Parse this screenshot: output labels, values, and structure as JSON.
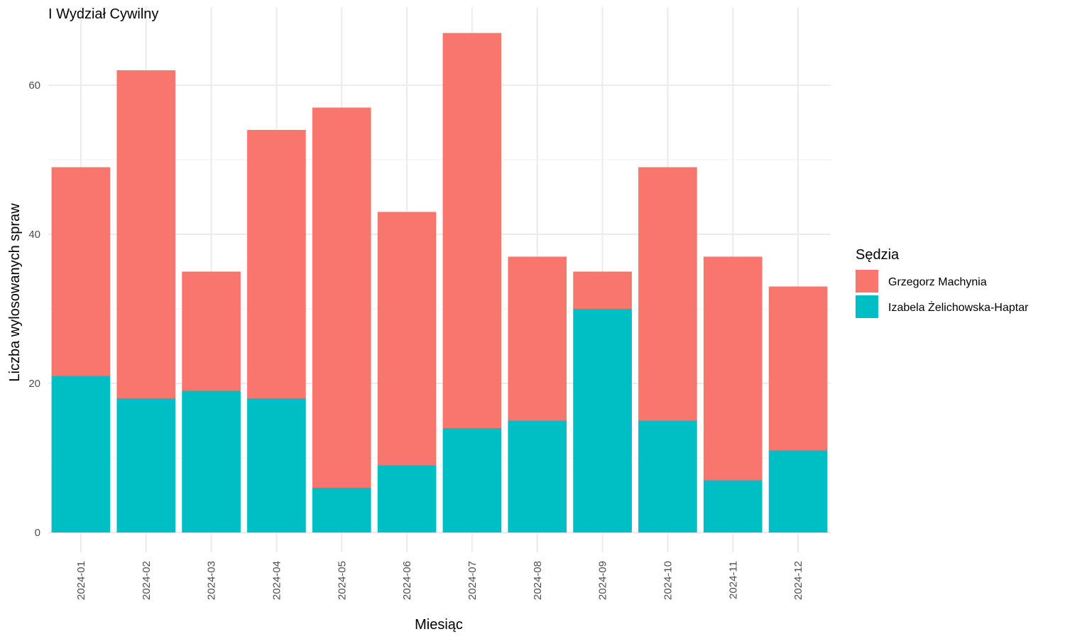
{
  "chart_data": {
    "type": "bar",
    "stacked": true,
    "title": "I Wydział Cywilny",
    "xlabel": "Miesiąc",
    "ylabel": "Liczba wylosowanych spraw",
    "categories": [
      "2024-01",
      "2024-02",
      "2024-03",
      "2024-04",
      "2024-05",
      "2024-06",
      "2024-07",
      "2024-08",
      "2024-09",
      "2024-10",
      "2024-11",
      "2024-12"
    ],
    "ylim": [
      0,
      67
    ],
    "yticks": [
      0,
      20,
      40,
      60
    ],
    "grid": true,
    "legend": {
      "title": "Sędzia",
      "position": "right"
    },
    "series": [
      {
        "name": "Izabela Żelichowska-Haptar",
        "color": "#00BFC4",
        "values": [
          21,
          18,
          19,
          18,
          6,
          9,
          14,
          15,
          30,
          15,
          7,
          11
        ]
      },
      {
        "name": "Grzegorz Machynia",
        "color": "#F8766D",
        "values": [
          28,
          44,
          16,
          36,
          51,
          34,
          53,
          22,
          5,
          34,
          30,
          22
        ]
      }
    ],
    "legend_order": [
      "Grzegorz Machynia",
      "Izabela Żelichowska-Haptar"
    ]
  }
}
